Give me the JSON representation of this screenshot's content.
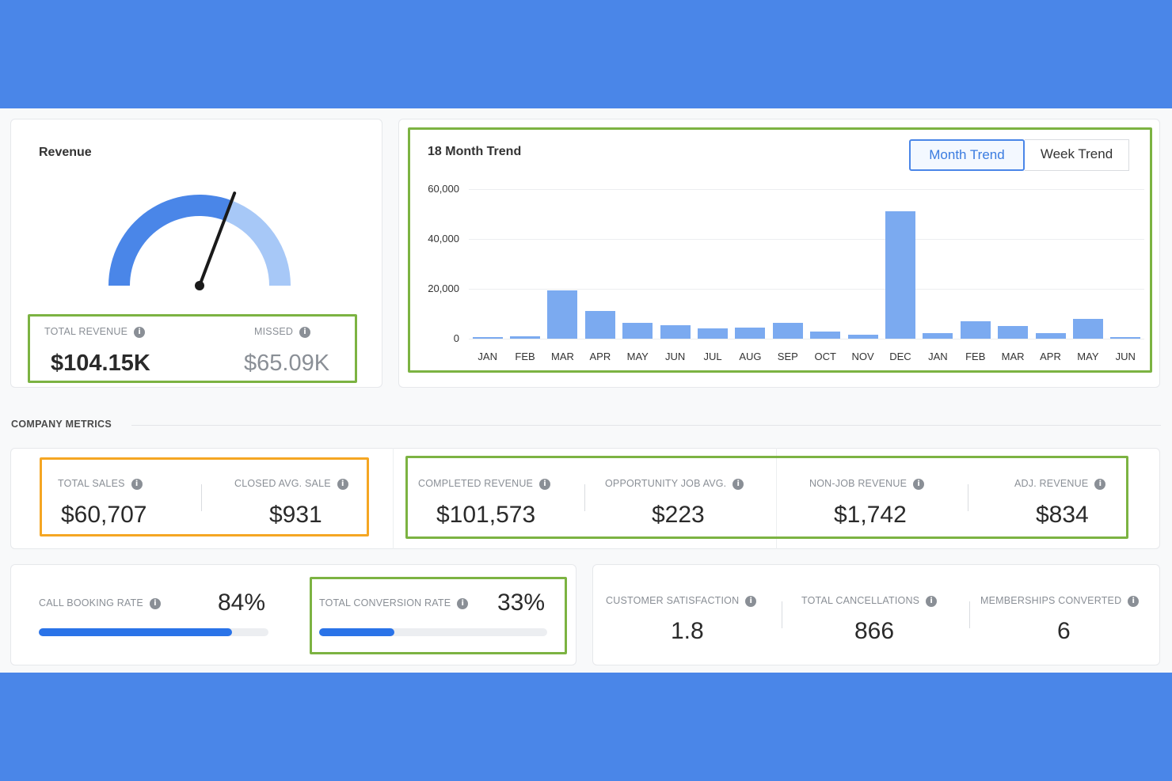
{
  "revenue": {
    "title": "Revenue",
    "total_label": "TOTAL REVENUE",
    "total_value": "$104.15K",
    "missed_label": "MISSED",
    "missed_value": "$65.09K",
    "gauge_fraction": 0.615,
    "colors": {
      "filled": "#4a86e8",
      "remaining": "#a7c8f7",
      "needle": "#1a1a1a"
    }
  },
  "trend": {
    "title": "18 Month Trend",
    "buttons": [
      {
        "label": "Month Trend",
        "active": true
      },
      {
        "label": "Week Trend",
        "active": false
      }
    ]
  },
  "chart_data": {
    "type": "bar",
    "title": "18 Month Trend",
    "xlabel": "",
    "ylabel": "",
    "categories": [
      "JAN",
      "FEB",
      "MAR",
      "APR",
      "MAY",
      "JUN",
      "JUL",
      "AUG",
      "SEP",
      "OCT",
      "NOV",
      "DEC",
      "JAN",
      "FEB",
      "MAR",
      "APR",
      "MAY",
      "JUN"
    ],
    "values": [
      500,
      900,
      19500,
      11000,
      6500,
      5500,
      4200,
      4400,
      6300,
      3000,
      1700,
      51000,
      2200,
      7000,
      5200,
      2200,
      8000,
      600
    ],
    "yticks": [
      "0",
      "20,000",
      "40,000",
      "60,000"
    ],
    "ylim": [
      0,
      60000
    ],
    "grid": true,
    "bar_color": "#7baaf0"
  },
  "metrics_section_label": "COMPANY METRICS",
  "metrics_row1": [
    {
      "label": "TOTAL SALES",
      "value": "$60,707"
    },
    {
      "label": "CLOSED AVG. SALE",
      "value": "$931"
    },
    {
      "label": "COMPLETED REVENUE",
      "value": "$101,573"
    },
    {
      "label": "OPPORTUNITY JOB AVG.",
      "value": "$223"
    },
    {
      "label": "NON-JOB REVENUE",
      "value": "$1,742"
    },
    {
      "label": "ADJ. REVENUE",
      "value": "$834"
    }
  ],
  "rates": [
    {
      "label": "CALL BOOKING RATE",
      "value": "84%",
      "fraction": 0.84
    },
    {
      "label": "TOTAL CONVERSION RATE",
      "value": "33%",
      "fraction": 0.33
    }
  ],
  "metrics_row3": [
    {
      "label": "CUSTOMER SATISFACTION",
      "value": "1.8"
    },
    {
      "label": "TOTAL CANCELLATIONS",
      "value": "866"
    },
    {
      "label": "MEMBERSHIPS CONVERTED",
      "value": "6"
    }
  ],
  "info_icon_glyph": "i"
}
